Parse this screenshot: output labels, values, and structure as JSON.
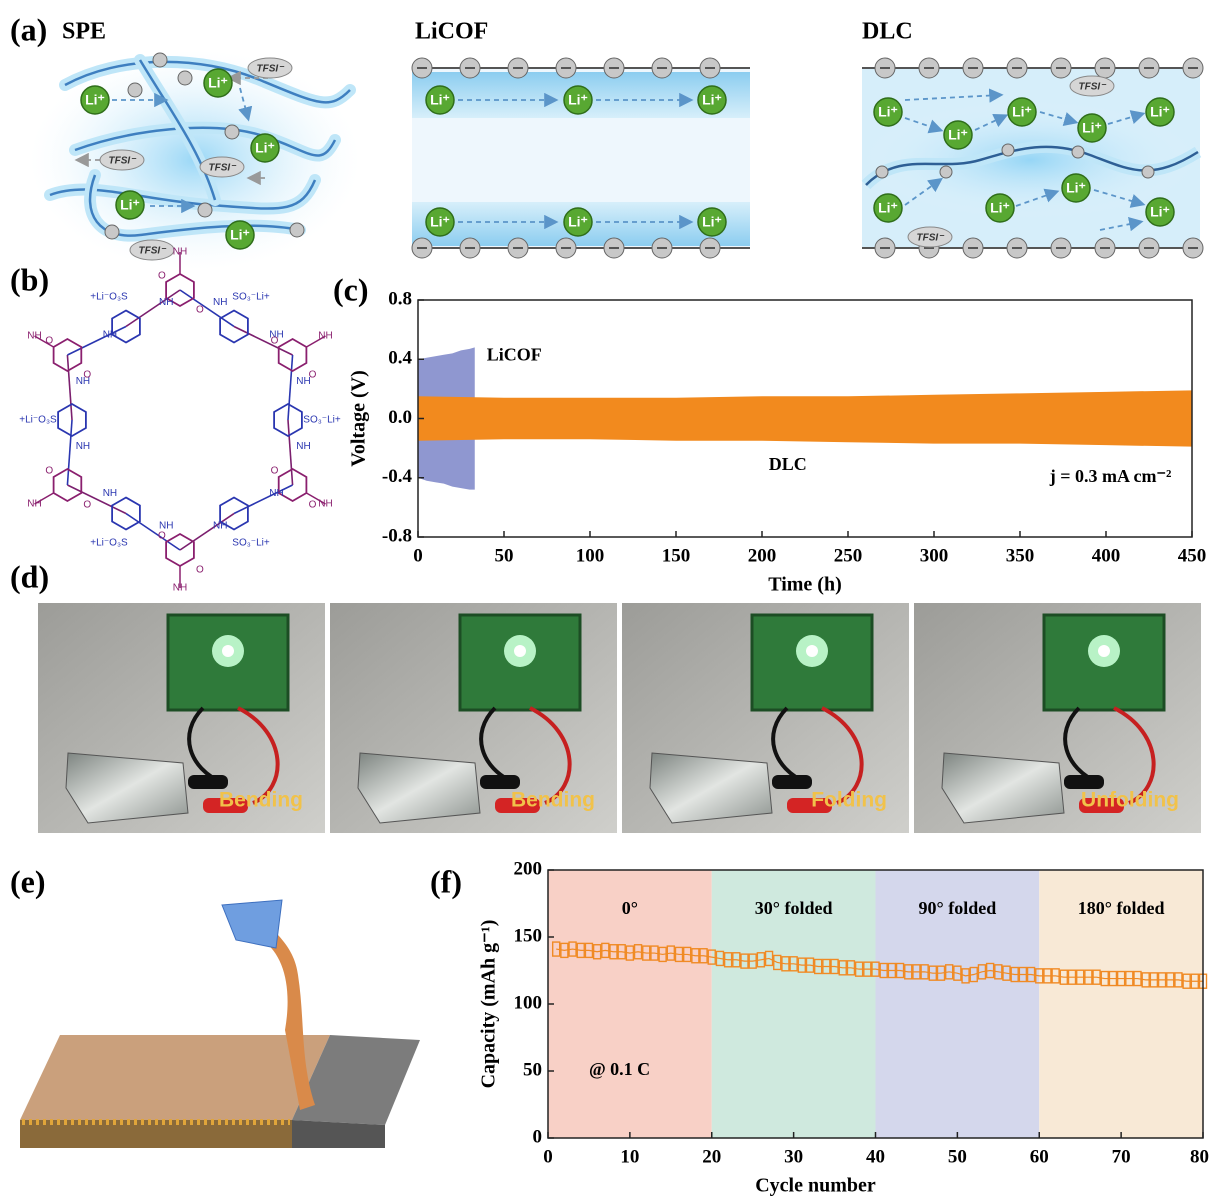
{
  "panels": {
    "a": "(a)",
    "b": "(b)",
    "c": "(c)",
    "d": "(d)",
    "e": "(e)",
    "f": "(f)"
  },
  "panel_a": {
    "titles": [
      "SPE",
      "LiCOF",
      "DLC"
    ],
    "li_label": "Li⁺",
    "tfsi_label": "TFSI⁻"
  },
  "panel_b": {
    "sulfonate": "SO₃⁻Li+",
    "sulfonate_left": "+Li⁻O₃S",
    "amine": "NH",
    "oxygen": "O"
  },
  "panel_d": {
    "labels": [
      "Bending",
      "Bending",
      "Folding",
      "Unfolding"
    ]
  },
  "chart_data": [
    {
      "type": "area",
      "x_label": "Time (h)",
      "y_label": "Voltage (V)",
      "xlim": [
        0,
        450
      ],
      "xticks": [
        0,
        50,
        100,
        150,
        200,
        250,
        300,
        350,
        400,
        450
      ],
      "ylim": [
        -0.8,
        0.8
      ],
      "yticks": [
        -0.8,
        -0.4,
        {
          "value": 0,
          "label": "0.0"
        },
        0.4,
        0.8
      ],
      "annotations": [
        "j = 0.3 mA cm⁻²"
      ],
      "series": [
        {
          "name": "LiCOF",
          "color": "#8f97d0",
          "x": [
            0,
            5,
            10,
            15,
            20,
            25,
            30,
            33
          ],
          "values": [
            0.4,
            0.41,
            0.42,
            0.43,
            0.44,
            0.46,
            0.47,
            0.48
          ],
          "lower": [
            -0.4,
            -0.42,
            -0.43,
            -0.44,
            -0.46,
            -0.47,
            -0.48,
            -0.48
          ]
        },
        {
          "name": "DLC",
          "color": "#f28a1e",
          "x": [
            0,
            50,
            100,
            150,
            200,
            250,
            300,
            350,
            400,
            450
          ],
          "values": [
            0.15,
            0.14,
            0.14,
            0.14,
            0.15,
            0.15,
            0.16,
            0.17,
            0.18,
            0.19
          ],
          "lower": [
            -0.15,
            -0.14,
            -0.14,
            -0.15,
            -0.15,
            -0.16,
            -0.17,
            -0.17,
            -0.18,
            -0.19
          ]
        }
      ]
    },
    {
      "type": "line",
      "x_label": "Cycle number",
      "y_label": "Capacity (mAh g⁻¹)",
      "xlim": [
        0,
        80
      ],
      "xticks": [
        0,
        10,
        20,
        30,
        40,
        50,
        60,
        70,
        80
      ],
      "ylim": [
        0,
        200
      ],
      "yticks": [
        0,
        50,
        100,
        150,
        200
      ],
      "annotations": [
        "@ 0.1 C"
      ],
      "regions": [
        {
          "from": 0,
          "to": 20,
          "label": "0°",
          "color": "#f8d0c6"
        },
        {
          "from": 20,
          "to": 40,
          "label": "30° folded",
          "color": "#cfe9de"
        },
        {
          "from": 40,
          "to": 60,
          "label": "90°  folded",
          "color": "#d4d7ec"
        },
        {
          "from": 60,
          "to": 80,
          "label": "180° folded",
          "color": "#f8e9d6"
        }
      ],
      "series": [
        {
          "color": "#f08a24",
          "x": [
            1,
            2,
            3,
            4,
            5,
            6,
            7,
            8,
            9,
            10,
            11,
            12,
            13,
            14,
            15,
            16,
            17,
            18,
            19,
            20,
            21,
            22,
            23,
            24,
            25,
            26,
            27,
            28,
            29,
            30,
            31,
            32,
            33,
            34,
            35,
            36,
            37,
            38,
            39,
            40,
            41,
            42,
            43,
            44,
            45,
            46,
            47,
            48,
            49,
            50,
            51,
            52,
            53,
            54,
            55,
            56,
            57,
            58,
            59,
            60,
            61,
            62,
            63,
            64,
            65,
            66,
            67,
            68,
            69,
            70,
            71,
            72,
            73,
            74,
            75,
            76,
            77,
            78,
            79,
            80
          ],
          "values": [
            141,
            140,
            141,
            140,
            140,
            139,
            140,
            139,
            139,
            138,
            139,
            138,
            138,
            137,
            138,
            137,
            137,
            136,
            136,
            135,
            134,
            133,
            133,
            132,
            132,
            133,
            134,
            131,
            130,
            130,
            129,
            129,
            128,
            128,
            128,
            127,
            127,
            126,
            126,
            126,
            125,
            125,
            125,
            124,
            124,
            124,
            123,
            123,
            124,
            123,
            121,
            122,
            124,
            125,
            124,
            123,
            122,
            122,
            122,
            121,
            121,
            121,
            120,
            120,
            120,
            120,
            120,
            119,
            119,
            119,
            119,
            119,
            118,
            118,
            118,
            118,
            118,
            117,
            117,
            117
          ]
        }
      ]
    }
  ]
}
